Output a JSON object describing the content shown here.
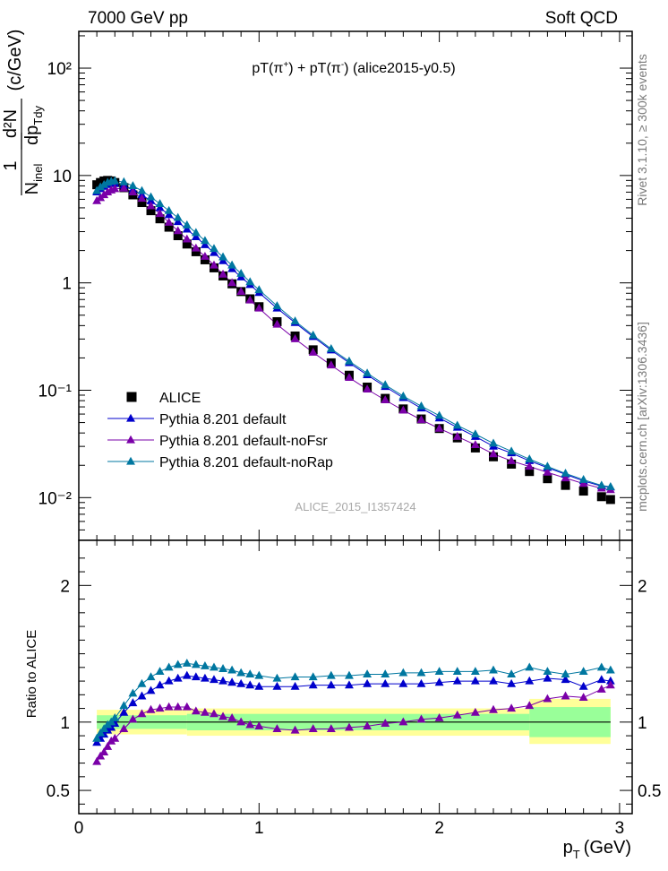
{
  "header": {
    "left": "7000 GeV pp",
    "right": "Soft QCD"
  },
  "side_text": {
    "rivet": "Rivet 3.1.10, ≥ 300k events",
    "mcplots": "mcplots.cern.ch [arXiv:1306.3436]"
  },
  "plot_title": {
    "part1": "pT(π",
    "sup1": "+",
    "part2": ") + pT(π",
    "sup2": "-",
    "part3": ") (alice2015-y0.5)"
  },
  "watermark": "ALICE_2015_I1357424",
  "axes": {
    "ylabel_num": "1",
    "ylabel_den": "N",
    "ylabel_den_sub": "inel",
    "ylabel_frac_num": "d²N",
    "ylabel_frac_den": "dp",
    "ylabel_frac_den_sub": "Tdy",
    "ylabel_units": "(c/GeV)",
    "ratio_ylabel": "Ratio to ALICE",
    "xlabel": "p",
    "xlabel_sub": "T",
    "xlabel_units": "(GeV)"
  },
  "colors": {
    "alice": "#000000",
    "default": "#0000cc",
    "noFsr": "#7a00a8",
    "noRap": "#0077a0",
    "band_green": "#99ff99",
    "band_yellow": "#ffff99"
  },
  "chart_data": [
    {
      "type": "scatter",
      "title": "pT(π+) + pT(π-) (alice2015-y0.5)",
      "xlabel": "pT (GeV)",
      "ylabel": "1/N_inel d²N/dpT dy (c/GeV)",
      "yscale": "log",
      "xlim": [
        0,
        3.07
      ],
      "ylim": [
        0.004,
        220
      ],
      "x_ticks": [
        "0",
        "1",
        "2",
        "3"
      ],
      "y_ticks": [
        "10⁻²",
        "10⁻¹",
        "1",
        "10",
        "10²"
      ],
      "x": [
        0.1,
        0.12,
        0.14,
        0.16,
        0.18,
        0.2,
        0.25,
        0.3,
        0.35,
        0.4,
        0.45,
        0.5,
        0.55,
        0.6,
        0.65,
        0.7,
        0.75,
        0.8,
        0.85,
        0.9,
        0.95,
        1.0,
        1.1,
        1.2,
        1.3,
        1.4,
        1.5,
        1.6,
        1.7,
        1.8,
        1.9,
        2.0,
        2.1,
        2.2,
        2.3,
        2.4,
        2.5,
        2.6,
        2.7,
        2.8,
        2.9,
        2.95
      ],
      "legend": [
        "ALICE",
        "Pythia 8.201 default",
        "Pythia 8.201 default-noFsr",
        "Pythia 8.201 default-noRap"
      ],
      "legend_position": "bottom-left",
      "series": [
        {
          "name": "ALICE",
          "marker": "square",
          "values": [
            8.2,
            8.6,
            8.9,
            9.0,
            8.9,
            8.6,
            7.7,
            6.6,
            5.6,
            4.7,
            3.95,
            3.3,
            2.75,
            2.3,
            1.95,
            1.64,
            1.38,
            1.16,
            0.98,
            0.83,
            0.71,
            0.6,
            0.435,
            0.32,
            0.238,
            0.18,
            0.138,
            0.107,
            0.084,
            0.067,
            0.054,
            0.044,
            0.036,
            0.029,
            0.024,
            0.0205,
            0.0175,
            0.015,
            0.013,
            0.0115,
            0.0102,
            0.0096
          ]
        },
        {
          "name": "Pythia 8.201 default",
          "marker": "triangle",
          "values": [
            7.0,
            7.5,
            7.9,
            8.2,
            8.4,
            8.4,
            8.1,
            7.4,
            6.6,
            5.8,
            5.0,
            4.3,
            3.7,
            3.15,
            2.68,
            2.26,
            1.91,
            1.6,
            1.35,
            1.13,
            0.96,
            0.81,
            0.58,
            0.425,
            0.315,
            0.236,
            0.18,
            0.139,
            0.108,
            0.085,
            0.068,
            0.055,
            0.045,
            0.037,
            0.03,
            0.026,
            0.022,
            0.019,
            0.0165,
            0.0143,
            0.0128,
            0.0125
          ]
        },
        {
          "name": "Pythia 8.201 default-noFsr",
          "marker": "triangle",
          "values": [
            5.8,
            6.2,
            6.6,
            7.0,
            7.3,
            7.5,
            7.6,
            7.0,
            6.1,
            5.2,
            4.4,
            3.65,
            3.05,
            2.55,
            2.1,
            1.76,
            1.46,
            1.2,
            1.0,
            0.83,
            0.69,
            0.58,
            0.41,
            0.3,
            0.225,
            0.171,
            0.131,
            0.102,
            0.081,
            0.065,
            0.053,
            0.044,
            0.037,
            0.031,
            0.0255,
            0.022,
            0.0195,
            0.0172,
            0.0152,
            0.0135,
            0.0122,
            0.0118
          ]
        },
        {
          "name": "Pythia 8.201 default-noRap",
          "marker": "triangle",
          "values": [
            7.2,
            7.8,
            8.2,
            8.6,
            8.8,
            8.9,
            8.7,
            8.0,
            7.2,
            6.3,
            5.45,
            4.7,
            4.05,
            3.45,
            2.93,
            2.47,
            2.08,
            1.74,
            1.46,
            1.22,
            1.02,
            0.86,
            0.61,
            0.44,
            0.325,
            0.243,
            0.186,
            0.144,
            0.112,
            0.088,
            0.071,
            0.058,
            0.047,
            0.039,
            0.032,
            0.027,
            0.0228,
            0.0195,
            0.0168,
            0.0147,
            0.013,
            0.0126
          ]
        }
      ]
    },
    {
      "type": "scatter",
      "title": "",
      "xlabel": "pT (GeV)",
      "ylabel": "Ratio to ALICE",
      "xlim": [
        0,
        3.07
      ],
      "ylim": [
        0.33,
        2.33
      ],
      "x_ticks": [
        "0",
        "1",
        "2",
        "3"
      ],
      "y_ticks": [
        "0.5",
        "1",
        "2"
      ],
      "x": [
        0.1,
        0.12,
        0.14,
        0.16,
        0.18,
        0.2,
        0.25,
        0.3,
        0.35,
        0.4,
        0.45,
        0.5,
        0.55,
        0.6,
        0.65,
        0.7,
        0.75,
        0.8,
        0.85,
        0.9,
        0.95,
        1.0,
        1.1,
        1.2,
        1.3,
        1.4,
        1.5,
        1.6,
        1.7,
        1.8,
        1.9,
        2.0,
        2.1,
        2.2,
        2.3,
        2.4,
        2.5,
        2.6,
        2.7,
        2.8,
        2.9,
        2.95
      ],
      "bands": [
        {
          "name": "stat+syst (yellow)",
          "x": [
            0.1,
            0.6,
            2.5,
            2.95
          ],
          "lo": [
            0.91,
            0.9,
            0.84,
            0.83
          ],
          "hi": [
            1.09,
            1.1,
            1.17,
            1.18
          ]
        },
        {
          "name": "stat (green)",
          "x": [
            0.1,
            0.6,
            2.5,
            2.95
          ],
          "lo": [
            0.95,
            0.94,
            0.89,
            0.89
          ],
          "hi": [
            1.05,
            1.06,
            1.11,
            1.11
          ]
        }
      ],
      "series": [
        {
          "name": "Pythia 8.201 default",
          "marker": "triangle",
          "values": [
            0.85,
            0.88,
            0.91,
            0.94,
            0.96,
            0.99,
            1.07,
            1.14,
            1.19,
            1.23,
            1.27,
            1.3,
            1.32,
            1.34,
            1.33,
            1.32,
            1.31,
            1.3,
            1.29,
            1.28,
            1.27,
            1.26,
            1.26,
            1.26,
            1.27,
            1.27,
            1.27,
            1.28,
            1.28,
            1.28,
            1.28,
            1.29,
            1.3,
            1.3,
            1.3,
            1.28,
            1.3,
            1.32,
            1.31,
            1.26,
            1.31,
            1.3
          ]
        },
        {
          "name": "Pythia 8.201 default-noFsr",
          "marker": "triangle",
          "values": [
            0.71,
            0.75,
            0.78,
            0.82,
            0.86,
            0.88,
            0.95,
            1.02,
            1.06,
            1.09,
            1.1,
            1.11,
            1.11,
            1.11,
            1.08,
            1.07,
            1.06,
            1.04,
            1.03,
            1.0,
            0.98,
            0.97,
            0.95,
            0.94,
            0.95,
            0.95,
            0.96,
            0.97,
            0.99,
            1.0,
            1.02,
            1.03,
            1.05,
            1.07,
            1.09,
            1.1,
            1.12,
            1.17,
            1.19,
            1.18,
            1.24,
            1.27
          ]
        },
        {
          "name": "Pythia 8.201 default-noRap",
          "marker": "triangle",
          "values": [
            0.88,
            0.92,
            0.95,
            0.98,
            1.0,
            1.03,
            1.12,
            1.21,
            1.28,
            1.33,
            1.37,
            1.4,
            1.42,
            1.43,
            1.42,
            1.41,
            1.4,
            1.39,
            1.38,
            1.36,
            1.35,
            1.34,
            1.32,
            1.33,
            1.33,
            1.34,
            1.34,
            1.35,
            1.35,
            1.36,
            1.36,
            1.37,
            1.37,
            1.37,
            1.38,
            1.35,
            1.4,
            1.37,
            1.35,
            1.37,
            1.4,
            1.38
          ]
        }
      ]
    }
  ]
}
